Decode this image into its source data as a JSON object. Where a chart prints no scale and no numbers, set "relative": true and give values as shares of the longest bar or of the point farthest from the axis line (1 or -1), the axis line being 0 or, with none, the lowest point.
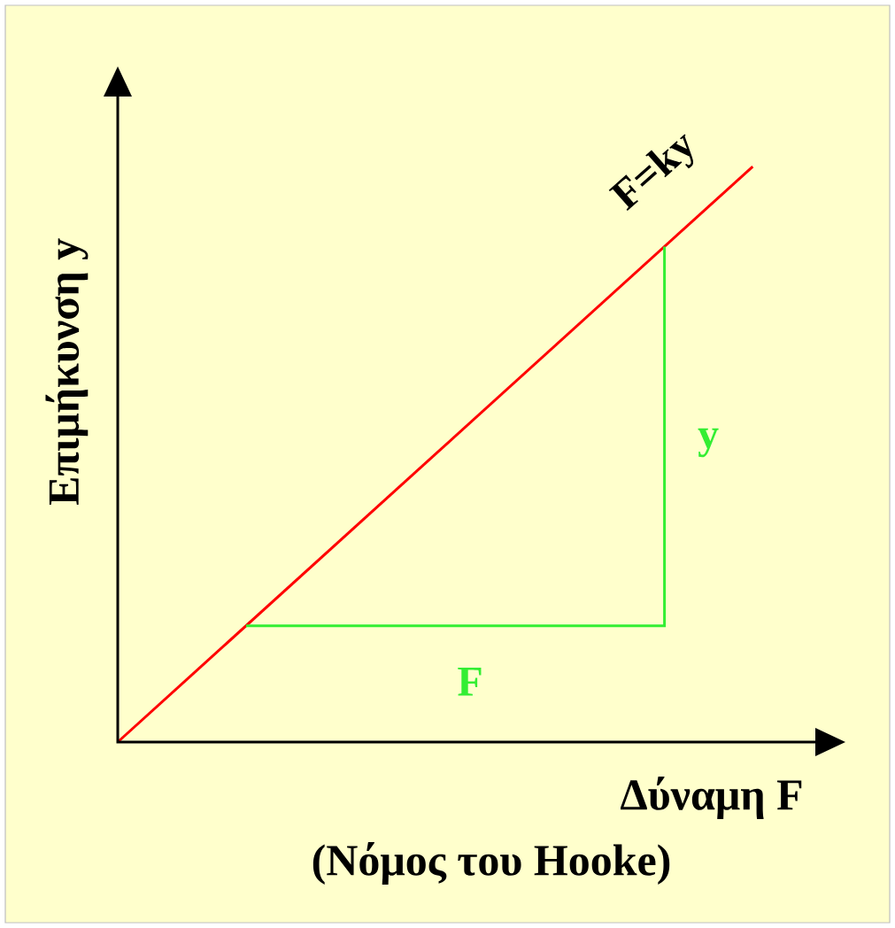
{
  "chart_data": {
    "type": "line",
    "title": "(Νόμος του Hooke)",
    "xlabel": "Δύναμη F",
    "ylabel": "Επιμήκυνση y",
    "relative": true,
    "categories": [
      null,
      null
    ],
    "series": [
      {
        "color": "#ff0000",
        "values": [
          0,
          1
        ]
      }
    ],
    "annotations": [
      "F=ky",
      "F",
      "y"
    ]
  }
}
